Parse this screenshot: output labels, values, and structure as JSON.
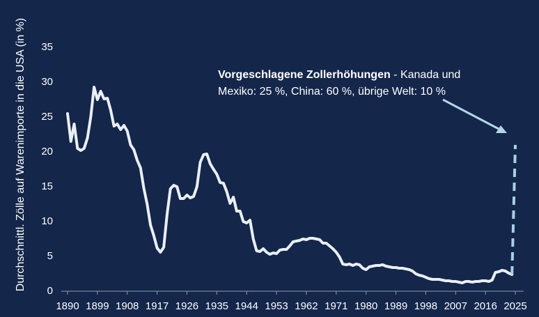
{
  "chart_data": {
    "type": "line",
    "y_label": "Durchschnittl. Zölle auf Warenimporte in die USA (in %)",
    "annotation": {
      "bold": "Vorgeschlagene Zollerhöhungen",
      "text": " - Kanada und",
      "text2": "Mexiko: 25 %, China: 60 %, übrige Welt: 10 %"
    },
    "xlim": [
      1890,
      2025
    ],
    "xticks": [
      1890,
      1899,
      1908,
      1917,
      1926,
      1935,
      1944,
      1953,
      1962,
      1971,
      1980,
      1989,
      1998,
      2007,
      2016,
      2025
    ],
    "ylim": [
      0,
      35
    ],
    "yticks": [
      0,
      5,
      10,
      15,
      20,
      25,
      30,
      35
    ],
    "series": [
      {
        "color": "#e9eff4",
        "dashed": false,
        "x": [
          1890,
          1891,
          1892,
          1893,
          1894,
          1895,
          1896,
          1897,
          1898,
          1899,
          1900,
          1901,
          1902,
          1903,
          1904,
          1905,
          1906,
          1907,
          1908,
          1909,
          1910,
          1911,
          1912,
          1913,
          1914,
          1915,
          1916,
          1917,
          1918,
          1919,
          1920,
          1921,
          1922,
          1923,
          1924,
          1925,
          1926,
          1927,
          1928,
          1929,
          1930,
          1931,
          1932,
          1933,
          1934,
          1935,
          1936,
          1937,
          1938,
          1939,
          1940,
          1941,
          1942,
          1943,
          1944,
          1945,
          1946,
          1947,
          1948,
          1949,
          1950,
          1951,
          1952,
          1953,
          1954,
          1955,
          1956,
          1957,
          1958,
          1959,
          1960,
          1961,
          1962,
          1963,
          1964,
          1965,
          1966,
          1967,
          1968,
          1969,
          1970,
          1971,
          1972,
          1973,
          1974,
          1975,
          1976,
          1977,
          1978,
          1979,
          1980,
          1981,
          1982,
          1983,
          1984,
          1985,
          1986,
          1987,
          1988,
          1989,
          1990,
          1991,
          1992,
          1993,
          1994,
          1995,
          1996,
          1997,
          1998,
          1999,
          2000,
          2001,
          2002,
          2003,
          2004,
          2005,
          2006,
          2007,
          2008,
          2009,
          2010,
          2011,
          2012,
          2013,
          2014,
          2015,
          2016,
          2017,
          2018,
          2019,
          2020,
          2021,
          2022,
          2023,
          2024
        ],
        "values": [
          25.5,
          21.5,
          24,
          20.5,
          20.2,
          20.5,
          22,
          25,
          29.3,
          27.5,
          28.7,
          27.6,
          27.7,
          26,
          23.7,
          24,
          23.2,
          23.8,
          23,
          21,
          20.3,
          18.8,
          17.7,
          14.8,
          12.5,
          9.5,
          8,
          6.2,
          5.6,
          6.3,
          11,
          14.7,
          15.2,
          15,
          13.3,
          13.3,
          13.8,
          13.4,
          13.6,
          15,
          18.5,
          19.6,
          19.7,
          18.3,
          17.5,
          16.8,
          15.6,
          15.5,
          14.3,
          12.6,
          13.5,
          11.5,
          11.5,
          10,
          9.8,
          10.2,
          7.5,
          5.8,
          5.7,
          6.1,
          5.6,
          5.3,
          5.5,
          5.4,
          5.9,
          6,
          6,
          6.5,
          7.1,
          7.2,
          7.3,
          7.5,
          7.4,
          7.6,
          7.6,
          7.5,
          7.4,
          6.9,
          6.9,
          6.5,
          6.1,
          5.6,
          4.9,
          3.9,
          3.8,
          3.9,
          3.7,
          3.9,
          3.8,
          3.3,
          3.1,
          3.5,
          3.6,
          3.7,
          3.7,
          3.8,
          3.6,
          3.5,
          3.4,
          3.4,
          3.3,
          3.3,
          3.2,
          3.1,
          2.9,
          2.5,
          2.3,
          2.2,
          2,
          1.8,
          1.7,
          1.7,
          1.7,
          1.6,
          1.5,
          1.5,
          1.4,
          1.4,
          1.3,
          1.2,
          1.4,
          1.4,
          1.3,
          1.4,
          1.4,
          1.5,
          1.5,
          1.4,
          1.6,
          2.7,
          2.8,
          3.0,
          2.9,
          2.6,
          2.4
        ]
      },
      {
        "color": "#a9cfe3",
        "dashed": true,
        "x": [
          2024,
          2025
        ],
        "values": [
          2.4,
          21
        ]
      }
    ]
  }
}
